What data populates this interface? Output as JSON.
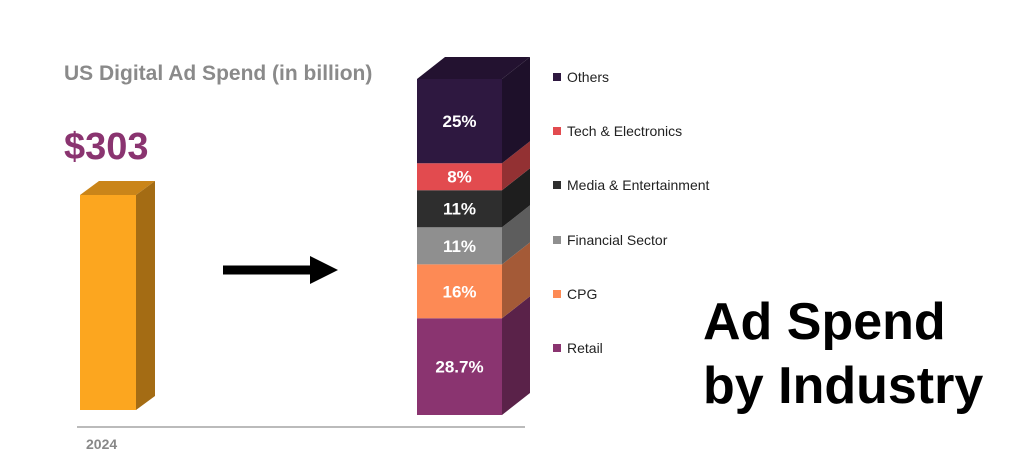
{
  "chart_data": {
    "type": "bar",
    "title": "US Digital Ad Spend (in billion)",
    "headline": [
      "Ad Spend",
      "by Industry"
    ],
    "total": {
      "category": "2024",
      "value": 303,
      "label": "$303",
      "color": "#fca61f"
    },
    "stack": {
      "series": [
        {
          "name": "Retail",
          "value": 28.7,
          "label": "28.7%",
          "color": "#8a3470"
        },
        {
          "name": "CPG",
          "value": 16,
          "label": "16%",
          "color": "#fd8a55"
        },
        {
          "name": "Financial Sector",
          "value": 11,
          "label": "11%",
          "color": "#8f8f8f"
        },
        {
          "name": "Media & Entertainment",
          "value": 11,
          "label": "11%",
          "color": "#2e2e2e"
        },
        {
          "name": "Tech & Electronics",
          "value": 8,
          "label": "8%",
          "color": "#e24b4f"
        },
        {
          "name": "Others",
          "value": 25,
          "label": "25%",
          "color": "#2e1840"
        }
      ]
    },
    "legend_order": [
      "Others",
      "Tech & Electronics",
      "Media & Entertainment",
      "Financial Sector",
      "CPG",
      "Retail"
    ]
  }
}
